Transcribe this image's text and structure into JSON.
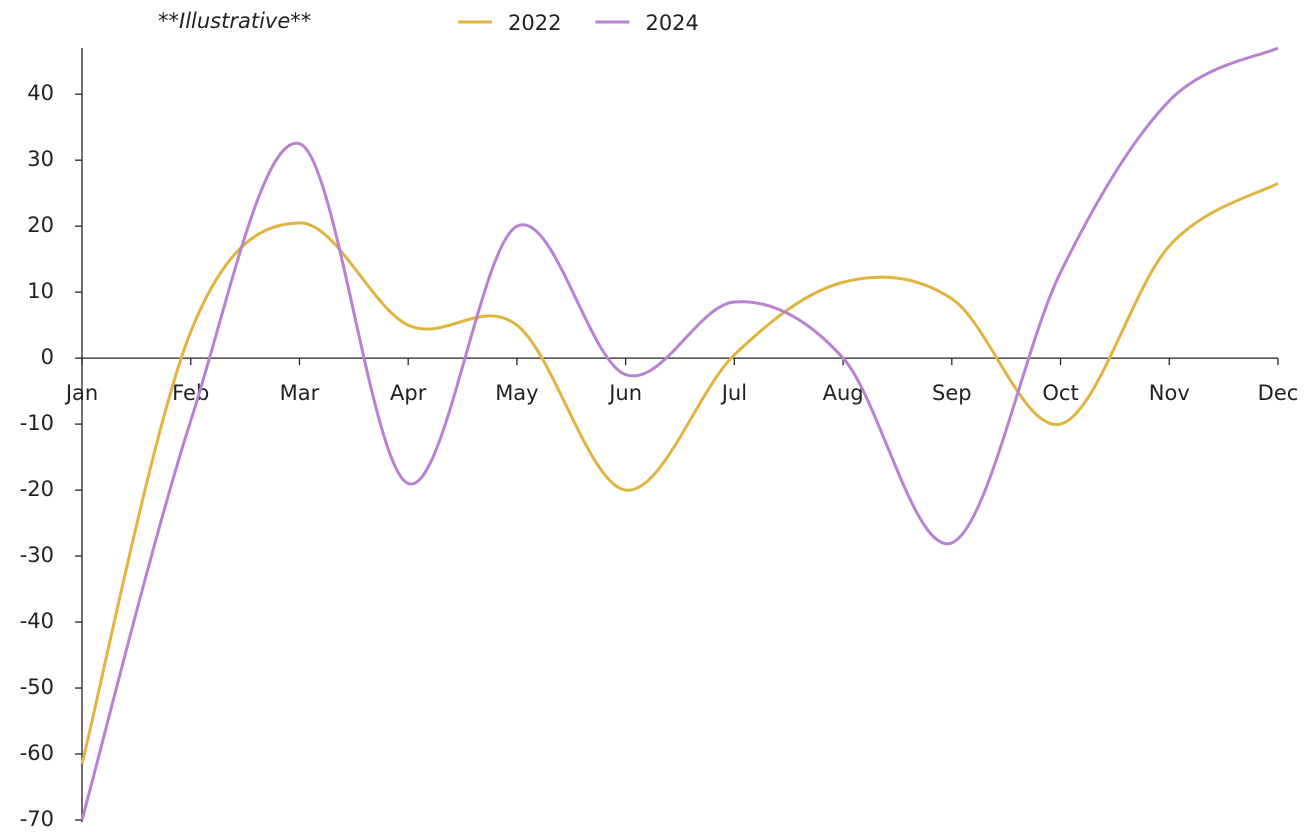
{
  "chart_data": {
    "type": "line",
    "title": "**Illustrative**",
    "categories": [
      "Jan",
      "Feb",
      "Mar",
      "Apr",
      "May",
      "Jun",
      "Jul",
      "Aug",
      "Sep",
      "Oct",
      "Nov",
      "Dec"
    ],
    "series": [
      {
        "name": "2022",
        "color": "#e0b43e",
        "values": [
          -61.5,
          4,
          20.5,
          5,
          5,
          -20,
          0.5,
          11.5,
          9,
          -10,
          17,
          26.5
        ]
      },
      {
        "name": "2024",
        "color": "#b981d2",
        "values": [
          -70,
          -9.5,
          32.5,
          -19,
          20,
          -2.5,
          8.5,
          0,
          -28,
          13,
          39,
          47
        ]
      }
    ],
    "ylim": [
      -70,
      47
    ],
    "yticks": [
      -70,
      -60,
      -50,
      -40,
      -30,
      -20,
      -10,
      0,
      10,
      20,
      30,
      40
    ],
    "smooth": true,
    "legend": "top"
  }
}
